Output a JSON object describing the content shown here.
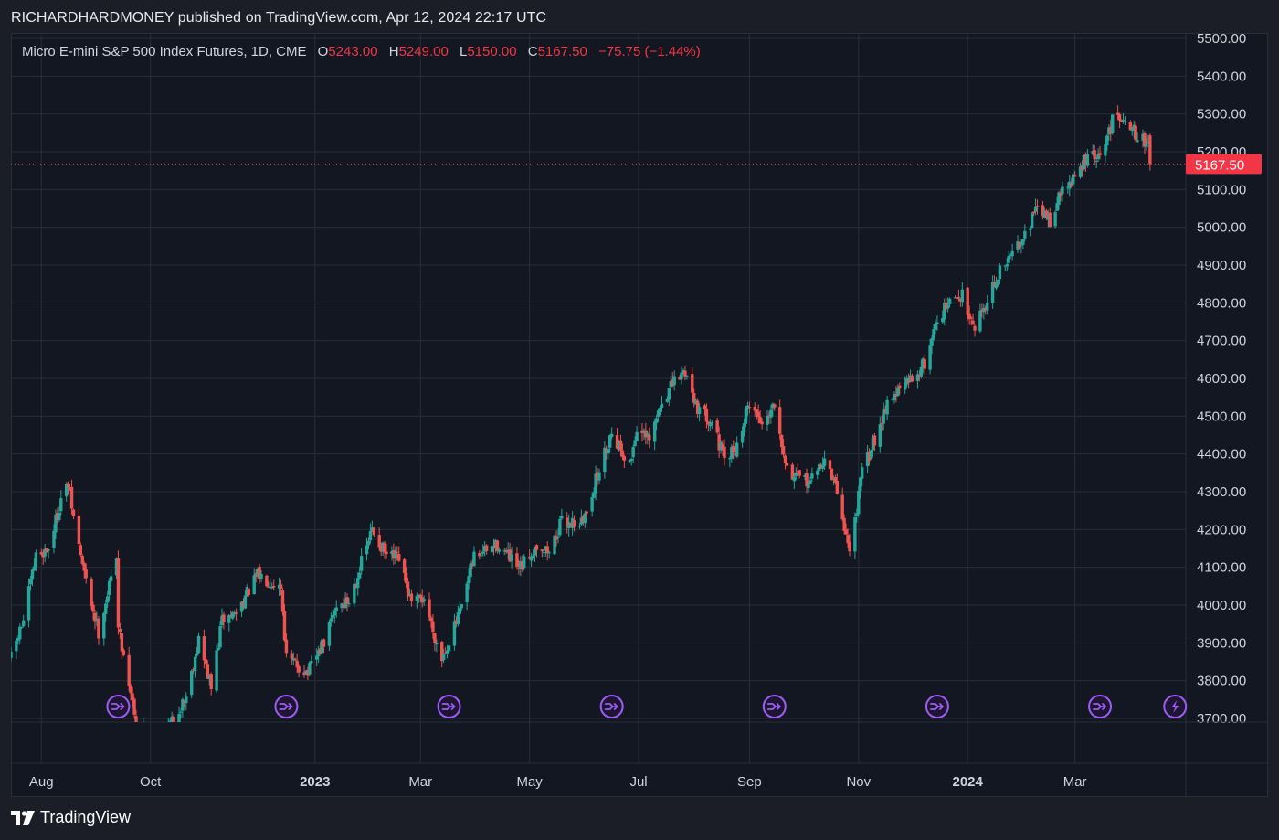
{
  "header": {
    "author": "RICHARDHARDMONEY",
    "published": "published on TradingView.com, Apr 12, 2024 22:17 UTC"
  },
  "legend": {
    "symbol": "Micro E-mini S&P 500 Index Futures, 1D, CME",
    "o_label": "O",
    "o_value": "5243.00",
    "h_label": "H",
    "h_value": "5249.00",
    "l_label": "L",
    "l_value": "5150.00",
    "c_label": "C",
    "c_value": "5167.50",
    "change": "−75.75 (−1.44%)"
  },
  "footer": {
    "brand": "TradingView"
  },
  "colors": {
    "up": "#26a69a",
    "down": "#ef5350",
    "price_line": "#f23645",
    "event_icon": "#9c5cf5",
    "grid": "#2a2e39",
    "background": "#131722"
  },
  "chart_data": {
    "type": "candlestick",
    "title": "Micro E-mini S&P 500 Index Futures, 1D, CME",
    "xlabel": "",
    "ylabel": "",
    "ylim": [
      3700,
      5500
    ],
    "y_ticks": [
      "5500.00",
      "5400.00",
      "5300.00",
      "5200.00",
      "5100.00",
      "5000.00",
      "4900.00",
      "4800.00",
      "4700.00",
      "4600.00",
      "4500.00",
      "4400.00",
      "4300.00",
      "4200.00",
      "4100.00",
      "4000.00",
      "3900.00",
      "3800.00",
      "3700.00"
    ],
    "x_range": [
      "2022-07-15",
      "2024-05-02"
    ],
    "x_ticks": [
      {
        "label": "Aug",
        "date": "2022-08-01",
        "bold": false
      },
      {
        "label": "Oct",
        "date": "2022-10-01",
        "bold": false
      },
      {
        "label": "2023",
        "date": "2023-01-01",
        "bold": true
      },
      {
        "label": "Mar",
        "date": "2023-03-01",
        "bold": false
      },
      {
        "label": "May",
        "date": "2023-05-01",
        "bold": false
      },
      {
        "label": "Jul",
        "date": "2023-07-01",
        "bold": false
      },
      {
        "label": "Sep",
        "date": "2023-09-01",
        "bold": false
      },
      {
        "label": "Nov",
        "date": "2023-11-01",
        "bold": false
      },
      {
        "label": "2024",
        "date": "2024-01-01",
        "bold": true
      },
      {
        "label": "Mar",
        "date": "2024-03-01",
        "bold": false
      }
    ],
    "last_price": "5167.50",
    "close_path": [
      [
        "2022-07-15",
        3860
      ],
      [
        "2022-07-22",
        3960
      ],
      [
        "2022-07-29",
        4130
      ],
      [
        "2022-08-05",
        4150
      ],
      [
        "2022-08-12",
        4280
      ],
      [
        "2022-08-16",
        4320
      ],
      [
        "2022-08-19",
        4230
      ],
      [
        "2022-08-26",
        4060
      ],
      [
        "2022-09-02",
        3930
      ],
      [
        "2022-09-09",
        4070
      ],
      [
        "2022-09-12",
        4140
      ],
      [
        "2022-09-13",
        3940
      ],
      [
        "2022-09-23",
        3700
      ],
      [
        "2022-09-30",
        3650
      ],
      [
        "2022-10-07",
        3660
      ],
      [
        "2022-10-13",
        3690
      ],
      [
        "2022-10-21",
        3760
      ],
      [
        "2022-10-28",
        3910
      ],
      [
        "2022-11-04",
        3780
      ],
      [
        "2022-11-10",
        3960
      ],
      [
        "2022-11-18",
        3980
      ],
      [
        "2022-11-30",
        4080
      ],
      [
        "2022-12-13",
        4050
      ],
      [
        "2022-12-16",
        3860
      ],
      [
        "2022-12-28",
        3820
      ],
      [
        "2023-01-06",
        3900
      ],
      [
        "2023-01-13",
        4000
      ],
      [
        "2023-01-20",
        4010
      ],
      [
        "2023-02-02",
        4200
      ],
      [
        "2023-02-10",
        4130
      ],
      [
        "2023-02-17",
        4120
      ],
      [
        "2023-02-24",
        4000
      ],
      [
        "2023-03-03",
        4020
      ],
      [
        "2023-03-10",
        3900
      ],
      [
        "2023-03-13",
        3860
      ],
      [
        "2023-03-24",
        3990
      ],
      [
        "2023-03-31",
        4130
      ],
      [
        "2023-04-14",
        4160
      ],
      [
        "2023-04-25",
        4090
      ],
      [
        "2023-05-05",
        4160
      ],
      [
        "2023-05-12",
        4140
      ],
      [
        "2023-05-19",
        4220
      ],
      [
        "2023-05-31",
        4220
      ],
      [
        "2023-06-05",
        4300
      ],
      [
        "2023-06-16",
        4460
      ],
      [
        "2023-06-26",
        4370
      ],
      [
        "2023-06-30",
        4470
      ],
      [
        "2023-07-07",
        4430
      ],
      [
        "2023-07-14",
        4540
      ],
      [
        "2023-07-21",
        4590
      ],
      [
        "2023-07-27",
        4620
      ],
      [
        "2023-08-04",
        4510
      ],
      [
        "2023-08-11",
        4490
      ],
      [
        "2023-08-18",
        4380
      ],
      [
        "2023-08-25",
        4420
      ],
      [
        "2023-09-01",
        4540
      ],
      [
        "2023-09-08",
        4480
      ],
      [
        "2023-09-15",
        4540
      ],
      [
        "2023-09-22",
        4360
      ],
      [
        "2023-09-29",
        4330
      ],
      [
        "2023-10-06",
        4330
      ],
      [
        "2023-10-13",
        4390
      ],
      [
        "2023-10-20",
        4300
      ],
      [
        "2023-10-27",
        4140
      ],
      [
        "2023-11-03",
        4350
      ],
      [
        "2023-11-10",
        4440
      ],
      [
        "2023-11-17",
        4540
      ],
      [
        "2023-11-24",
        4570
      ],
      [
        "2023-12-01",
        4600
      ],
      [
        "2023-12-08",
        4640
      ],
      [
        "2023-12-15",
        4760
      ],
      [
        "2023-12-22",
        4800
      ],
      [
        "2023-12-29",
        4820
      ],
      [
        "2024-01-05",
        4740
      ],
      [
        "2024-01-12",
        4810
      ],
      [
        "2024-01-19",
        4880
      ],
      [
        "2024-01-26",
        4930
      ],
      [
        "2024-02-02",
        4990
      ],
      [
        "2024-02-09",
        5050
      ],
      [
        "2024-02-16",
        5020
      ],
      [
        "2024-02-23",
        5100
      ],
      [
        "2024-03-01",
        5130
      ],
      [
        "2024-03-08",
        5190
      ],
      [
        "2024-03-15",
        5180
      ],
      [
        "2024-03-22",
        5280
      ],
      [
        "2024-03-28",
        5300
      ],
      [
        "2024-04-05",
        5240
      ],
      [
        "2024-04-11",
        5220
      ],
      [
        "2024-04-12",
        5167.5
      ]
    ],
    "event_markers": [
      {
        "date": "2022-09-13",
        "type": "dividend"
      },
      {
        "date": "2022-12-16",
        "type": "dividend"
      },
      {
        "date": "2023-03-17",
        "type": "dividend"
      },
      {
        "date": "2023-06-16",
        "type": "dividend"
      },
      {
        "date": "2023-09-15",
        "type": "dividend"
      },
      {
        "date": "2023-12-15",
        "type": "dividend"
      },
      {
        "date": "2024-03-15",
        "type": "dividend"
      },
      {
        "date": "2024-04-26",
        "type": "earnings"
      }
    ]
  }
}
